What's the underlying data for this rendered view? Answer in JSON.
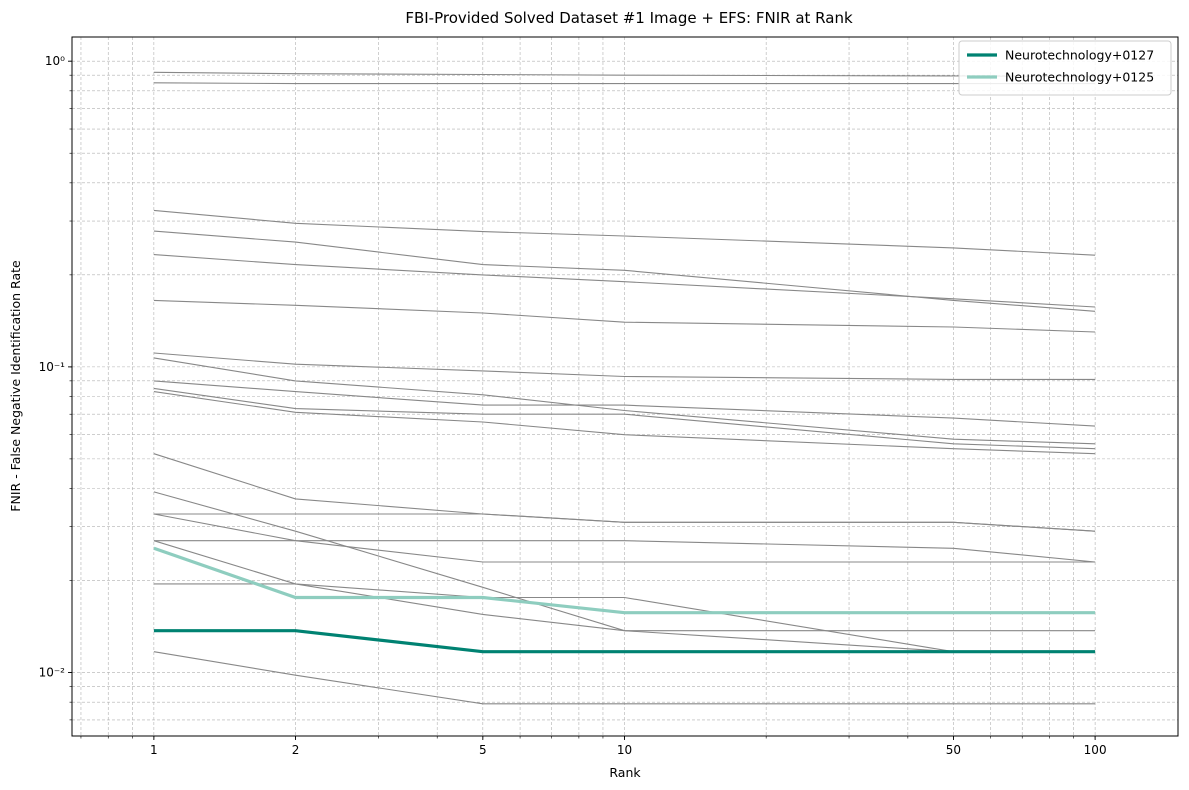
{
  "chart_data": {
    "type": "line",
    "title": "FBI-Provided Solved Dataset #1 Image + EFS: FNIR at Rank",
    "xlabel": "Rank",
    "ylabel": "FNIR - False Negative Identification Rate",
    "xscale": "log",
    "yscale": "log",
    "xlim": [
      0.67,
      150
    ],
    "ylim": [
      0.0062,
      1.2
    ],
    "x_ticks": [
      1,
      2,
      5,
      10,
      50,
      100
    ],
    "x_tick_labels": [
      "1",
      "2",
      "5",
      "10",
      "50",
      "100"
    ],
    "y_ticks": [
      0.01,
      0.1,
      1
    ],
    "y_tick_labels": [
      "10⁻²",
      "10⁻¹",
      "10⁰"
    ],
    "grid": true,
    "legend_position": "top-right",
    "x": [
      1,
      2,
      5,
      10,
      50,
      100
    ],
    "series": [
      {
        "name": "Neurotechnology+0127",
        "color": "#008272",
        "highlight": true,
        "values": [
          0.0137,
          0.0137,
          0.0117,
          0.0117,
          0.0117,
          0.0117
        ]
      },
      {
        "name": "Neurotechnology+0125",
        "color": "#8ecdbf",
        "highlight": true,
        "values": [
          0.0255,
          0.0176,
          0.0176,
          0.0157,
          0.0157,
          0.0157
        ]
      },
      {
        "color": "#888888",
        "values": [
          0.92,
          0.91,
          0.905,
          0.9,
          0.895,
          0.89
        ]
      },
      {
        "color": "#888888",
        "values": [
          0.85,
          0.845,
          0.845,
          0.845,
          0.845,
          0.845
        ]
      },
      {
        "color": "#888888",
        "values": [
          0.325,
          0.295,
          0.277,
          0.268,
          0.245,
          0.232
        ]
      },
      {
        "color": "#888888",
        "values": [
          0.278,
          0.256,
          0.216,
          0.207,
          0.165,
          0.152
        ]
      },
      {
        "color": "#888888",
        "values": [
          0.233,
          0.216,
          0.2,
          0.19,
          0.167,
          0.157
        ]
      },
      {
        "color": "#888888",
        "values": [
          0.165,
          0.159,
          0.15,
          0.14,
          0.135,
          0.13
        ]
      },
      {
        "color": "#888888",
        "values": [
          0.111,
          0.102,
          0.097,
          0.093,
          0.091,
          0.091
        ]
      },
      {
        "color": "#888888",
        "values": [
          0.107,
          0.09,
          0.081,
          0.072,
          0.058,
          0.056
        ]
      },
      {
        "color": "#888888",
        "values": [
          0.09,
          0.083,
          0.075,
          0.075,
          0.068,
          0.064
        ]
      },
      {
        "color": "#888888",
        "values": [
          0.085,
          0.073,
          0.07,
          0.07,
          0.056,
          0.054
        ]
      },
      {
        "color": "#888888",
        "values": [
          0.083,
          0.071,
          0.066,
          0.06,
          0.054,
          0.052
        ]
      },
      {
        "color": "#888888",
        "values": [
          0.052,
          0.037,
          0.033,
          0.031,
          0.031,
          0.029
        ]
      },
      {
        "color": "#888888",
        "values": [
          0.039,
          0.029,
          0.019,
          0.0137,
          0.0137,
          0.0137
        ]
      },
      {
        "color": "#888888",
        "values": [
          0.033,
          0.033,
          0.033,
          0.031,
          0.031,
          0.029
        ]
      },
      {
        "color": "#888888",
        "values": [
          0.033,
          0.027,
          0.023,
          0.023,
          0.023,
          0.023
        ]
      },
      {
        "color": "#888888",
        "values": [
          0.027,
          0.027,
          0.027,
          0.027,
          0.0255,
          0.023
        ]
      },
      {
        "color": "#888888",
        "values": [
          0.027,
          0.0195,
          0.0176,
          0.0176,
          0.0117,
          0.0117
        ]
      },
      {
        "color": "#888888",
        "values": [
          0.0195,
          0.0195,
          0.0155,
          0.0137,
          0.0117,
          0.0117
        ]
      },
      {
        "color": "#888888",
        "values": [
          0.0117,
          0.0098,
          0.0079,
          0.0079,
          0.0079,
          0.0079
        ]
      }
    ]
  }
}
